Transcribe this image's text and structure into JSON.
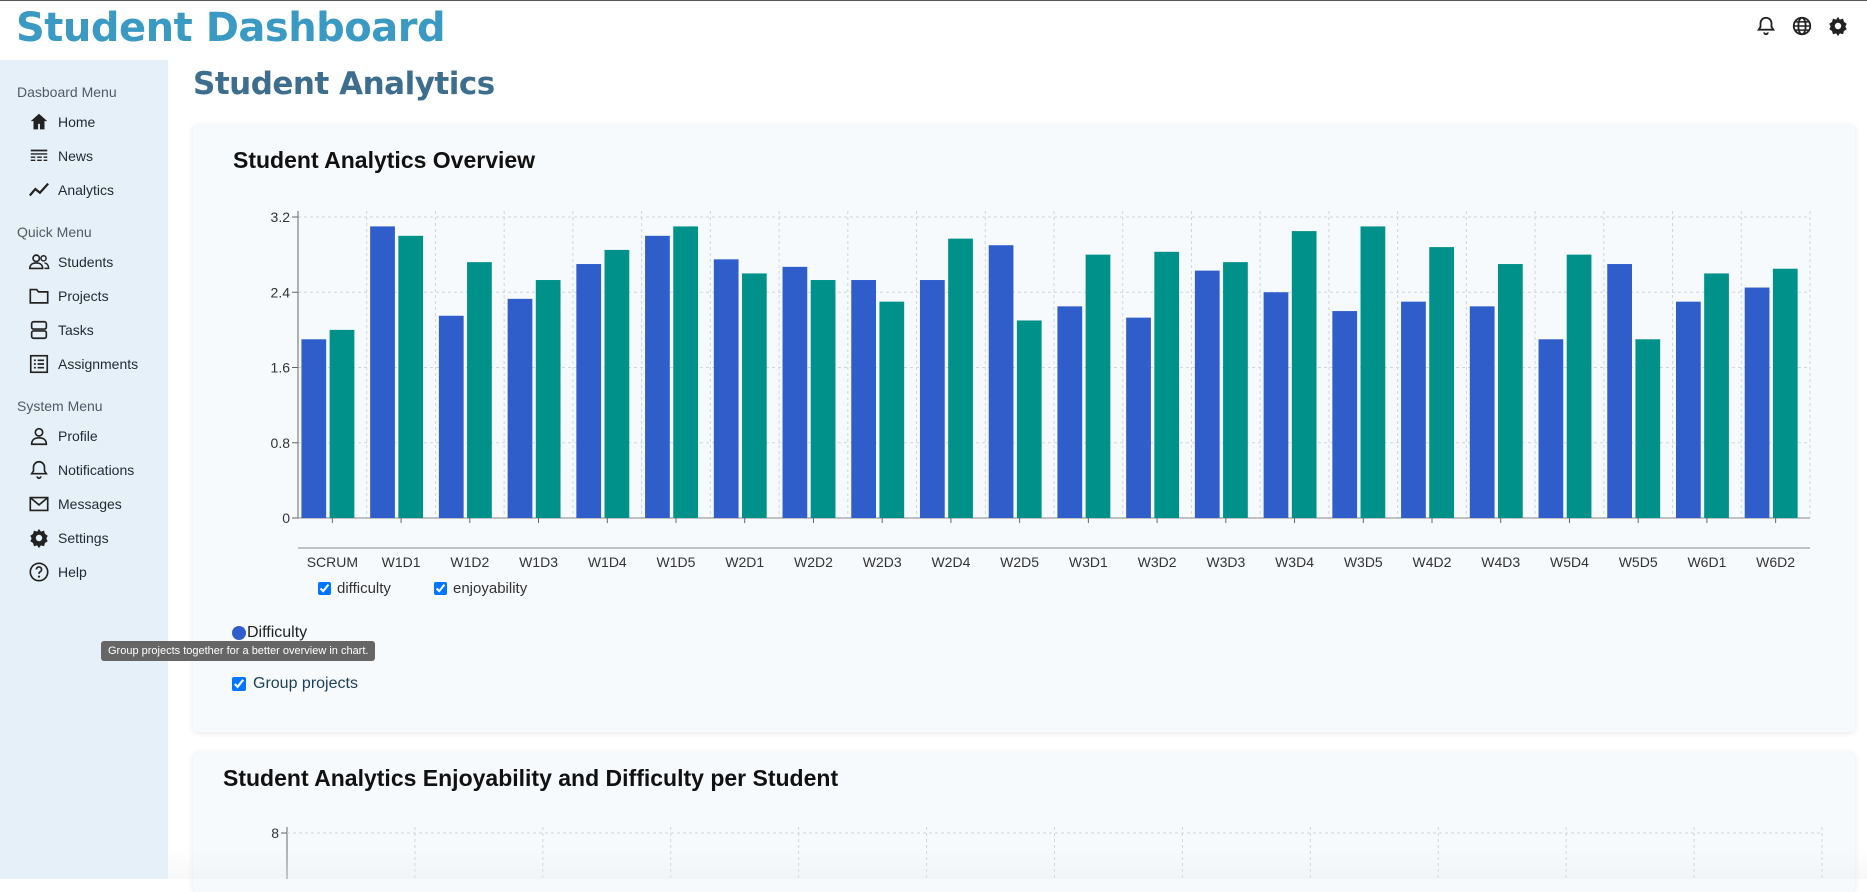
{
  "app": {
    "title": "Student Dashboard"
  },
  "topbar": {
    "icons": [
      "bell-icon",
      "globe-icon",
      "gear-icon"
    ]
  },
  "sidebar": {
    "sections": [
      {
        "label": "Dasboard Menu",
        "items": [
          {
            "label": "Home",
            "icon": "home-icon"
          },
          {
            "label": "News",
            "icon": "news-icon"
          },
          {
            "label": "Analytics",
            "icon": "analytics-icon"
          }
        ]
      },
      {
        "label": "Quick Menu",
        "items": [
          {
            "label": "Students",
            "icon": "students-icon"
          },
          {
            "label": "Projects",
            "icon": "folder-icon"
          },
          {
            "label": "Tasks",
            "icon": "tasks-icon"
          },
          {
            "label": "Assignments",
            "icon": "assignments-icon"
          }
        ]
      },
      {
        "label": "System Menu",
        "items": [
          {
            "label": "Profile",
            "icon": "profile-icon"
          },
          {
            "label": "Notifications",
            "icon": "bell-icon"
          },
          {
            "label": "Messages",
            "icon": "mail-icon"
          },
          {
            "label": "Settings",
            "icon": "gear-icon"
          },
          {
            "label": "Help",
            "icon": "help-icon"
          }
        ]
      }
    ]
  },
  "main": {
    "page_title": "Student Analytics",
    "overview_card": {
      "title": "Student Analytics Overview",
      "legend": [
        {
          "label": "difficulty",
          "checked": true
        },
        {
          "label": "enjoyability",
          "checked": true
        }
      ],
      "selected_metric": "Difficulty",
      "tooltip": "Group projects together for a better overview in chart.",
      "group_projects": {
        "label": "Group projects",
        "checked": true
      }
    },
    "per_student_card": {
      "title": "Student Analytics Enjoyability and Difficulty per Student"
    }
  },
  "colors": {
    "difficulty": "#2f5dca",
    "enjoyability": "#00918a",
    "title": "#3a9ac4",
    "sidebar": "#e6f0f8"
  },
  "chart_data": [
    {
      "type": "bar",
      "title": "Student Analytics Overview",
      "categories": [
        "SCRUM",
        "W1D1",
        "W1D2",
        "W1D3",
        "W1D4",
        "W1D5",
        "W2D1",
        "W2D2",
        "W2D3",
        "W2D4",
        "W2D5",
        "W3D1",
        "W3D2",
        "W3D3",
        "W3D4",
        "W3D5",
        "W4D2",
        "W4D3",
        "W5D4",
        "W5D5",
        "W6D1",
        "W6D2"
      ],
      "series": [
        {
          "name": "difficulty",
          "values": [
            1.9,
            3.1,
            2.15,
            2.33,
            2.7,
            3.0,
            2.75,
            2.67,
            2.53,
            2.53,
            2.9,
            2.25,
            2.13,
            2.63,
            2.4,
            2.2,
            2.3,
            2.25,
            1.9,
            2.7,
            2.3,
            2.45
          ]
        },
        {
          "name": "enjoyability",
          "values": [
            2.0,
            3.0,
            2.72,
            2.53,
            2.85,
            3.1,
            2.6,
            2.53,
            2.3,
            2.97,
            2.1,
            2.8,
            2.83,
            2.72,
            3.05,
            3.1,
            2.88,
            2.7,
            2.8,
            1.9,
            2.6,
            2.65
          ]
        }
      ],
      "yticks": [
        "0",
        "0.8",
        "1.6",
        "2.4",
        "3.2"
      ],
      "ylim": [
        0,
        3.2
      ],
      "grid": true,
      "legend_position": "bottom-left"
    },
    {
      "type": "bar",
      "title": "Student Analytics Enjoyability and Difficulty per Student",
      "yticks": [
        "8"
      ],
      "ylim": [
        0,
        8
      ],
      "grid": true
    }
  ]
}
